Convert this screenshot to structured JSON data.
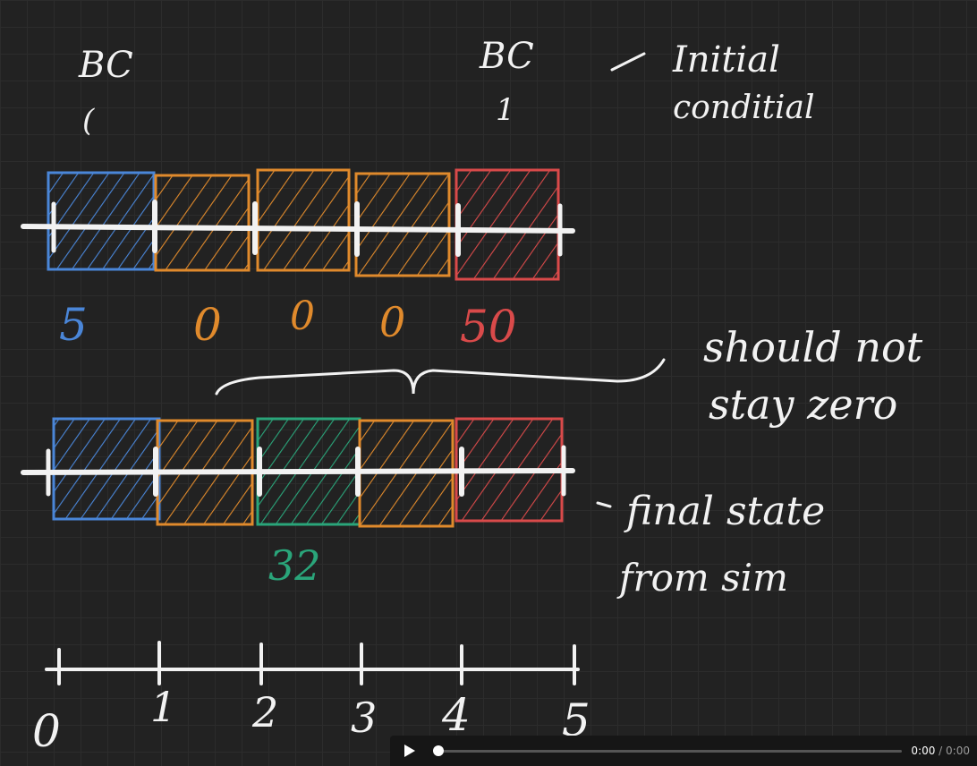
{
  "colors": {
    "blue": "#4a86d8",
    "orange": "#e08a2c",
    "green": "#2aa57a",
    "red": "#d94a4a",
    "chalk": "#f2f2f2"
  },
  "top_labels": {
    "bc_left": "BC",
    "bc_left_value": "(",
    "bc_right": "BC",
    "bc_right_value": "1",
    "initial_1": "Initial",
    "initial_2": "conditial"
  },
  "initial_values": [
    "5",
    "0",
    "0",
    "0",
    "50"
  ],
  "middle_note": {
    "line1": "should not",
    "line2": "stay zero"
  },
  "final_value": "32",
  "final_note": {
    "line1": "final state",
    "line2": "from sim"
  },
  "axis_ticks": [
    "0",
    "1",
    "2",
    "3",
    "4",
    "5"
  ],
  "player": {
    "current": "0:00",
    "separator": "/",
    "duration": "0:00"
  }
}
